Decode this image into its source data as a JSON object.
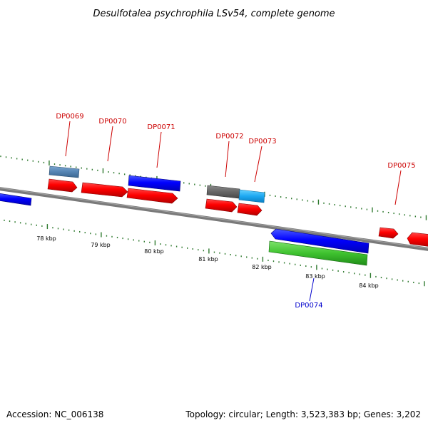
{
  "title": "Desulfotalea psychrophila LSv54, complete genome",
  "footer": {
    "accession": "Accession: NC_006138",
    "summary": "Topology: circular; Length: 3,523,383 bp; Genes: 3,202"
  },
  "ticks": [
    {
      "label": "78 kbp"
    },
    {
      "label": "79 kbp"
    },
    {
      "label": "80 kbp"
    },
    {
      "label": "81 kbp"
    },
    {
      "label": "82 kbp"
    },
    {
      "label": "83 kbp"
    },
    {
      "label": "84 kbp"
    }
  ],
  "gene_labels": [
    {
      "label": "DP0069",
      "color": "#cc0000"
    },
    {
      "label": "DP0070",
      "color": "#cc0000"
    },
    {
      "label": "DP0071",
      "color": "#cc0000"
    },
    {
      "label": "DP0072",
      "color": "#cc0000"
    },
    {
      "label": "DP0073",
      "color": "#cc0000"
    },
    {
      "label": "DP0075",
      "color": "#cc0000"
    },
    {
      "label": "DP0074",
      "color": "#0000cc"
    }
  ],
  "colors": {
    "forward_gene": "#ff0000",
    "reverse_gene": "#0000ff",
    "backbone": "#888888",
    "tick": "#2f7a2f",
    "label_red": "#cc0000",
    "label_blue": "#0000cc"
  }
}
